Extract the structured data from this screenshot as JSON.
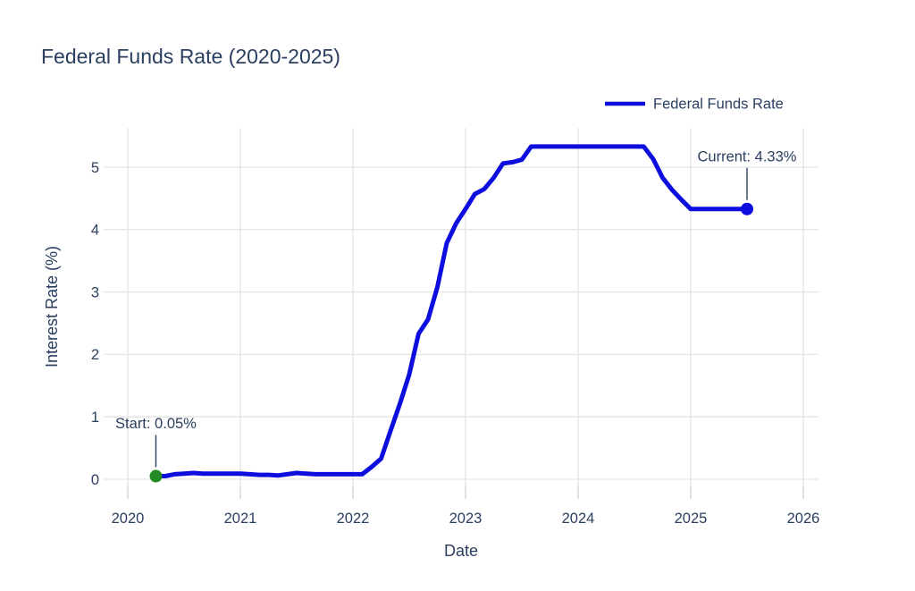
{
  "figure": {
    "title": "Federal Funds Rate (2020-2025)"
  },
  "chart_data": {
    "type": "line",
    "title": "Federal Funds Rate (2020-2025)",
    "xlabel": "Date",
    "ylabel": "Interest Rate (%)",
    "grid": true,
    "legend_position": "top-right",
    "legend": [
      {
        "label": "Federal Funds Rate",
        "color": "#0d0ddd"
      }
    ],
    "xlim": [
      2019.786,
      2026.135
    ],
    "ylim": [
      -0.1,
      5.63
    ],
    "x_ticks": {
      "values": [
        2020,
        2021,
        2022,
        2023,
        2024,
        2025,
        2026
      ],
      "labels": [
        "2020",
        "2021",
        "2022",
        "2023",
        "2024",
        "2025",
        "2026"
      ]
    },
    "y_ticks": {
      "values": [
        0,
        1,
        2,
        3,
        4,
        5
      ],
      "labels": [
        "0",
        "1",
        "2",
        "3",
        "4",
        "5"
      ]
    },
    "series": [
      {
        "name": "Federal Funds Rate",
        "color": "#0d0ddd",
        "points": [
          [
            2020.25,
            0.05
          ],
          [
            2020.333,
            0.05
          ],
          [
            2020.417,
            0.08
          ],
          [
            2020.5,
            0.09
          ],
          [
            2020.583,
            0.1
          ],
          [
            2020.667,
            0.09
          ],
          [
            2020.75,
            0.09
          ],
          [
            2020.833,
            0.09
          ],
          [
            2020.917,
            0.09
          ],
          [
            2021.0,
            0.09
          ],
          [
            2021.083,
            0.08
          ],
          [
            2021.167,
            0.07
          ],
          [
            2021.25,
            0.07
          ],
          [
            2021.333,
            0.06
          ],
          [
            2021.417,
            0.08
          ],
          [
            2021.5,
            0.1
          ],
          [
            2021.583,
            0.09
          ],
          [
            2021.667,
            0.08
          ],
          [
            2021.75,
            0.08
          ],
          [
            2021.833,
            0.08
          ],
          [
            2021.917,
            0.08
          ],
          [
            2022.0,
            0.08
          ],
          [
            2022.083,
            0.08
          ],
          [
            2022.167,
            0.2
          ],
          [
            2022.25,
            0.33
          ],
          [
            2022.333,
            0.77
          ],
          [
            2022.417,
            1.21
          ],
          [
            2022.5,
            1.68
          ],
          [
            2022.583,
            2.33
          ],
          [
            2022.667,
            2.56
          ],
          [
            2022.75,
            3.08
          ],
          [
            2022.833,
            3.78
          ],
          [
            2022.917,
            4.1
          ],
          [
            2023.0,
            4.33
          ],
          [
            2023.083,
            4.57
          ],
          [
            2023.167,
            4.65
          ],
          [
            2023.25,
            4.83
          ],
          [
            2023.333,
            5.06
          ],
          [
            2023.417,
            5.08
          ],
          [
            2023.5,
            5.12
          ],
          [
            2023.583,
            5.33
          ],
          [
            2023.667,
            5.33
          ],
          [
            2023.75,
            5.33
          ],
          [
            2023.833,
            5.33
          ],
          [
            2023.917,
            5.33
          ],
          [
            2024.0,
            5.33
          ],
          [
            2024.083,
            5.33
          ],
          [
            2024.167,
            5.33
          ],
          [
            2024.25,
            5.33
          ],
          [
            2024.333,
            5.33
          ],
          [
            2024.417,
            5.33
          ],
          [
            2024.5,
            5.33
          ],
          [
            2024.583,
            5.33
          ],
          [
            2024.667,
            5.13
          ],
          [
            2024.75,
            4.83
          ],
          [
            2024.833,
            4.64
          ],
          [
            2024.917,
            4.48
          ],
          [
            2025.0,
            4.33
          ],
          [
            2025.083,
            4.33
          ],
          [
            2025.167,
            4.33
          ],
          [
            2025.25,
            4.33
          ],
          [
            2025.333,
            4.33
          ],
          [
            2025.417,
            4.33
          ],
          [
            2025.5,
            4.33
          ]
        ]
      }
    ],
    "markers": [
      {
        "name": "start-point",
        "x": 2020.25,
        "y": 0.05,
        "value": "0.05%",
        "color": "#228b22"
      },
      {
        "name": "current-point",
        "x": 2025.5,
        "y": 4.33,
        "value": "4.33%",
        "color": "#0d0ddd"
      }
    ],
    "annotations": [
      {
        "text": "Start: 0.05%",
        "x": 2020.25,
        "y": 0.05
      },
      {
        "text": "Current: 4.33%",
        "x": 2025.5,
        "y": 4.33
      }
    ],
    "colors": {
      "text": "#2a3f5f",
      "grid": "#e3e3e3",
      "tick": "#d2d2d2",
      "line": "#0d0ddd",
      "start_marker": "#228b22",
      "annotation_arrow": "#2a3f5f",
      "background": "#ffffff"
    }
  }
}
